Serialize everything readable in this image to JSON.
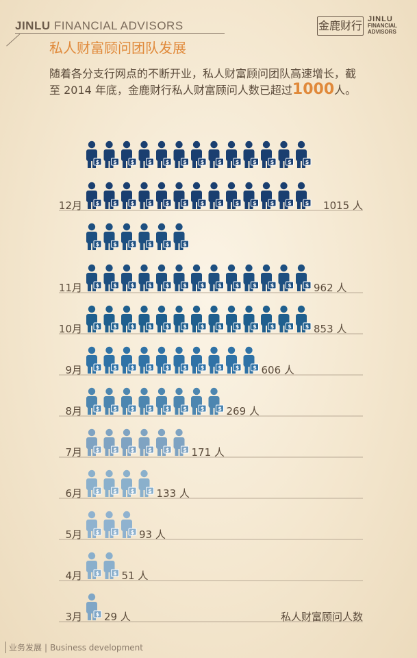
{
  "header": {
    "brand_bold": "JINLU",
    "brand_light": " FINANCIAL ADVISORS",
    "subtitle": "私人财富顾问团队发展",
    "logo_cn": "金鹿财行",
    "logo_en_1": "JINLU",
    "logo_en_2": "FINANCIAL",
    "logo_en_3": "ADVISORS"
  },
  "intro": {
    "text_1": "随着各分支行网点的不断开业，私人财富顾问团队高速增长，截至 2014 年底，金鹿财行私人财富顾问人数已超过",
    "highlight": "1000",
    "text_2": "人。"
  },
  "chart_data": {
    "type": "bar",
    "categories": [
      "3月",
      "4月",
      "5月",
      "6月",
      "7月",
      "8月",
      "9月",
      "10月",
      "11月",
      "12月"
    ],
    "series": [
      {
        "values": [
          29,
          51,
          93,
          133,
          171,
          269,
          606,
          853,
          962,
          1015
        ],
        "labels": [
          "29 人",
          "51 人",
          "93 人",
          "133 人",
          "171 人",
          "269 人",
          "606 人",
          "853 人",
          "962 人",
          "1015 人"
        ]
      }
    ],
    "legend_text": "私人财富顾问人数",
    "icon_counts": [
      1,
      2,
      3,
      4,
      6,
      8,
      10,
      13,
      19,
      26
    ],
    "colors": [
      "#7fa6c6",
      "#8aafcc",
      "#8fb2cf",
      "#8ab0cc",
      "#7fa3c2",
      "#4d86b0",
      "#2f72a6",
      "#1f5f8e",
      "#1d4f80",
      "#1a3f70"
    ]
  },
  "footer": {
    "cn": "业务发展",
    "en": "Business development"
  }
}
